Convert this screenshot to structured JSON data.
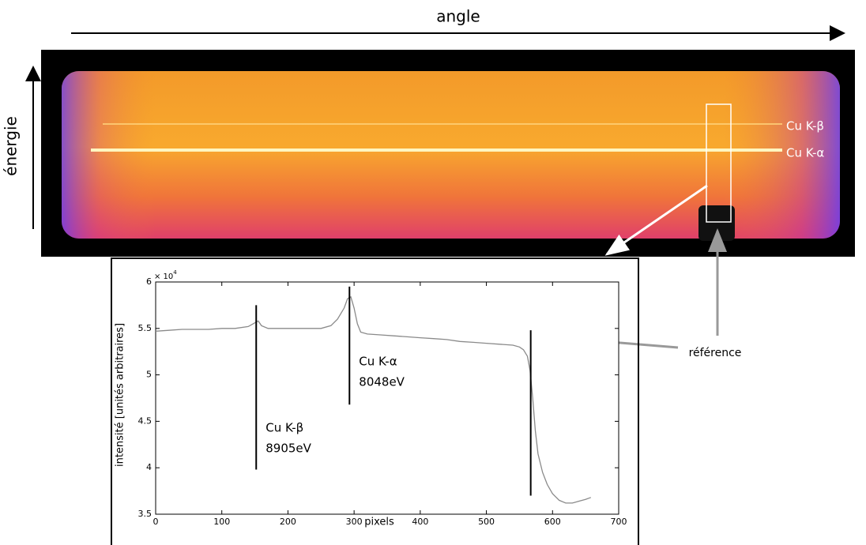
{
  "header": {
    "x_label": "angle",
    "y_label": "énergie"
  },
  "image": {
    "lines": [
      "Cu K-β",
      "Cu K-α"
    ]
  },
  "annotation": "référence",
  "chart_data": {
    "type": "line",
    "xlabel": "pixels",
    "ylabel": "intensité [unités arbitraires]",
    "y_multiplier": {
      "base": "× 10",
      "exponent": "4"
    },
    "color": "#8a8a8a",
    "x": [
      0,
      20,
      40,
      60,
      80,
      100,
      120,
      140,
      150,
      155,
      160,
      170,
      190,
      210,
      230,
      250,
      265,
      275,
      285,
      290,
      295,
      300,
      305,
      310,
      320,
      340,
      360,
      380,
      400,
      420,
      440,
      460,
      480,
      500,
      520,
      540,
      550,
      556,
      562,
      566,
      570,
      574,
      578,
      585,
      592,
      600,
      610,
      620,
      630,
      640,
      650,
      658
    ],
    "values": [
      5.47,
      5.48,
      5.49,
      5.49,
      5.49,
      5.5,
      5.5,
      5.52,
      5.56,
      5.58,
      5.53,
      5.5,
      5.5,
      5.5,
      5.5,
      5.5,
      5.53,
      5.6,
      5.72,
      5.82,
      5.84,
      5.72,
      5.55,
      5.46,
      5.44,
      5.43,
      5.42,
      5.41,
      5.4,
      5.39,
      5.38,
      5.36,
      5.35,
      5.34,
      5.33,
      5.32,
      5.3,
      5.27,
      5.2,
      5.05,
      4.75,
      4.4,
      4.15,
      3.95,
      3.82,
      3.72,
      3.65,
      3.62,
      3.62,
      3.64,
      3.66,
      3.68
    ],
    "xlim": [
      0,
      700
    ],
    "xticks": [
      0,
      100,
      200,
      300,
      400,
      500,
      600,
      700
    ],
    "ylim": [
      3.5,
      6
    ],
    "yticks": [
      3.5,
      4,
      4.5,
      5,
      5.5,
      6
    ],
    "markers": [
      {
        "x": 152,
        "y_range": [
          3.98,
          5.75
        ],
        "labels": [
          "Cu K-β",
          "8905eV"
        ]
      },
      {
        "x": 293,
        "y_range": [
          4.68,
          5.95
        ],
        "labels": [
          "Cu K-α",
          "8048eV"
        ]
      },
      {
        "x": 567,
        "y_range": [
          3.7,
          5.48
        ]
      }
    ]
  }
}
